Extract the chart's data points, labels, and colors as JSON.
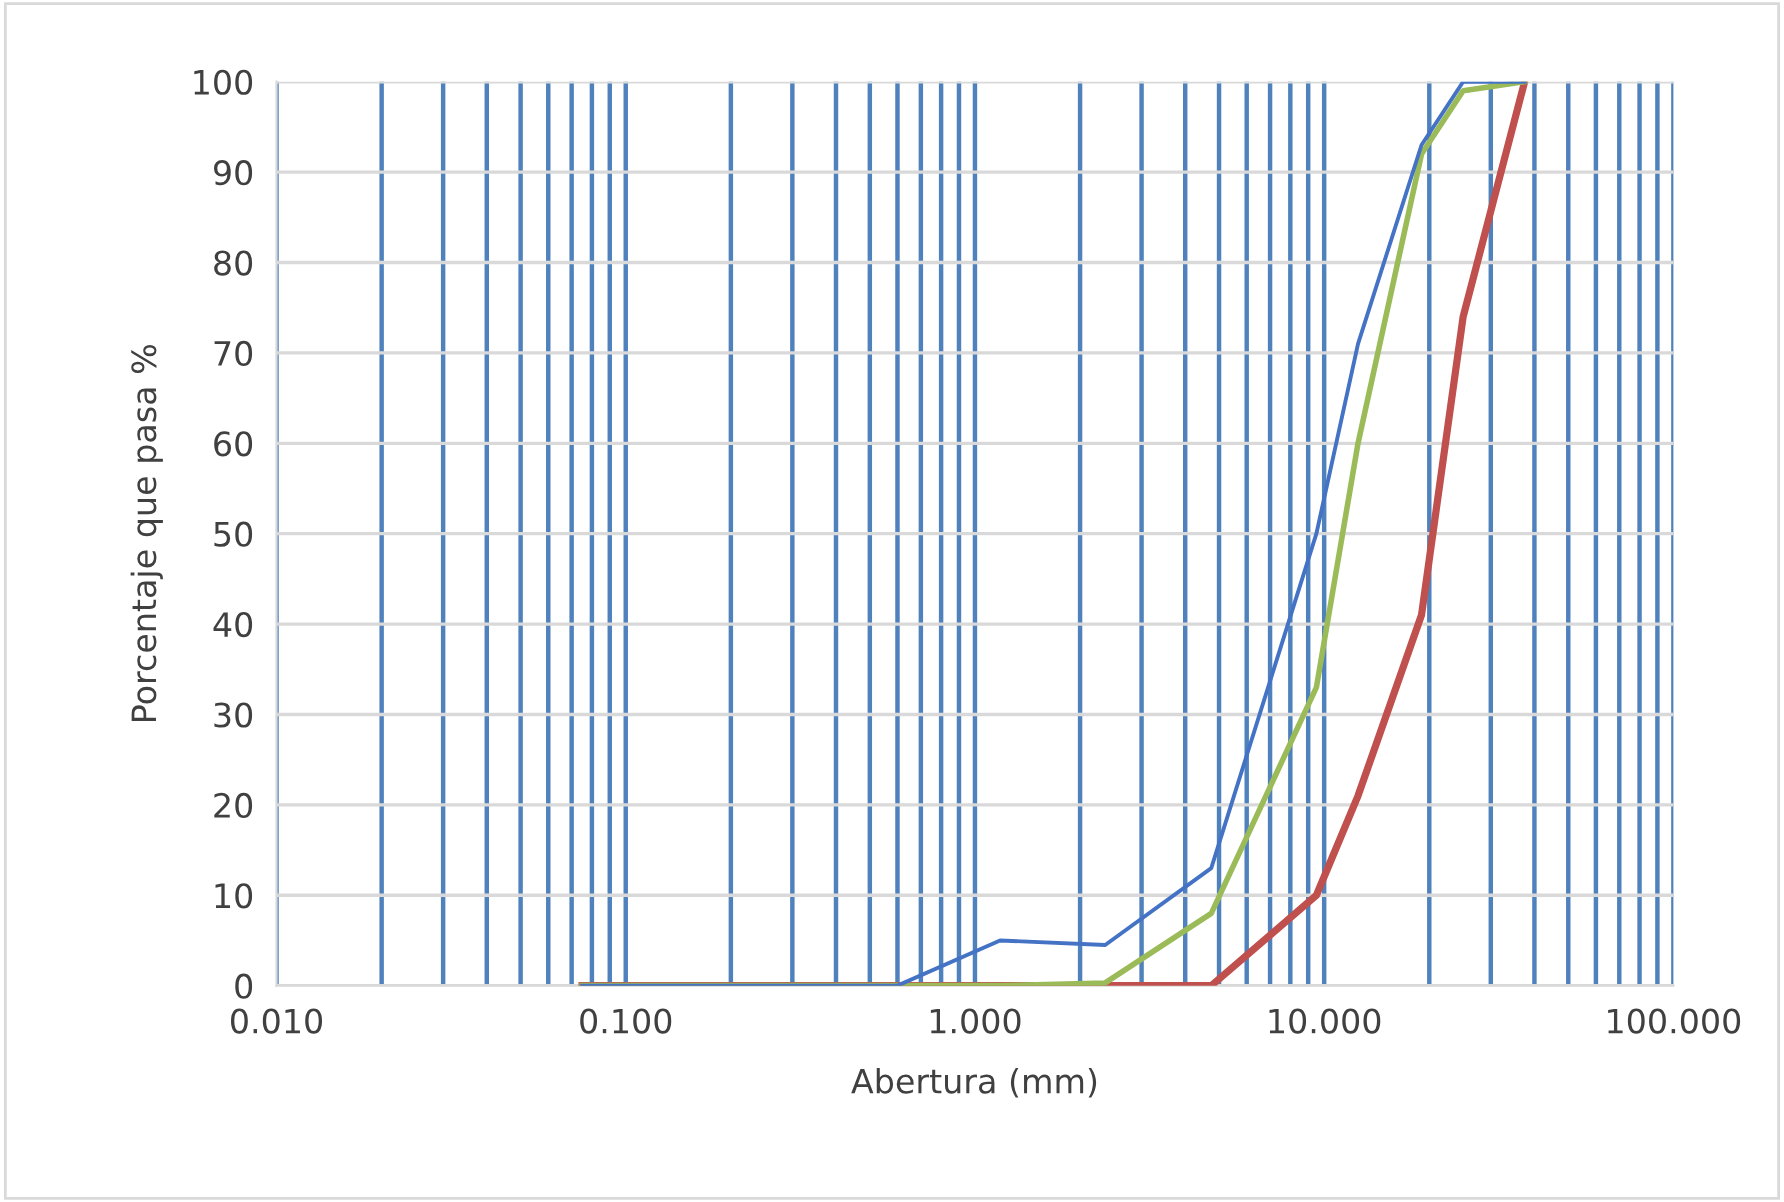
{
  "chart_data": {
    "type": "line",
    "xlabel": "Abertura (mm)",
    "ylabel": "Porcentaje que pasa %",
    "log": "x",
    "xlim": [
      0.01,
      100
    ],
    "xticks": [
      {
        "value": 0.01,
        "label": "0.010"
      },
      {
        "value": 0.1,
        "label": "0.100"
      },
      {
        "value": 1,
        "label": "1.000"
      },
      {
        "value": 10,
        "label": "10.000"
      },
      {
        "value": 100,
        "label": "100.000"
      }
    ],
    "ylim": [
      0,
      100
    ],
    "yticks": [
      0,
      10,
      20,
      30,
      40,
      50,
      60,
      70,
      80,
      90,
      100
    ],
    "grid": true,
    "marker": "none",
    "line_style": "solid",
    "x": [
      0.075,
      0.15,
      0.3,
      0.6,
      1.18,
      2.36,
      4.75,
      9.5,
      12.5,
      19,
      25,
      37.5
    ],
    "series": [
      {
        "color": "#4472c4",
        "values": [
          0,
          0,
          0,
          0,
          5,
          4.5,
          13,
          50,
          71,
          93,
          100,
          100
        ]
      },
      {
        "color": "#c0504d",
        "values": [
          0,
          0,
          0,
          0,
          0,
          0,
          0,
          10,
          21,
          41,
          74,
          100
        ]
      },
      {
        "color": "#9bbb59",
        "values": [
          0,
          0,
          0,
          0,
          0,
          0.3,
          8,
          33,
          60,
          92,
          99,
          100
        ]
      }
    ]
  }
}
